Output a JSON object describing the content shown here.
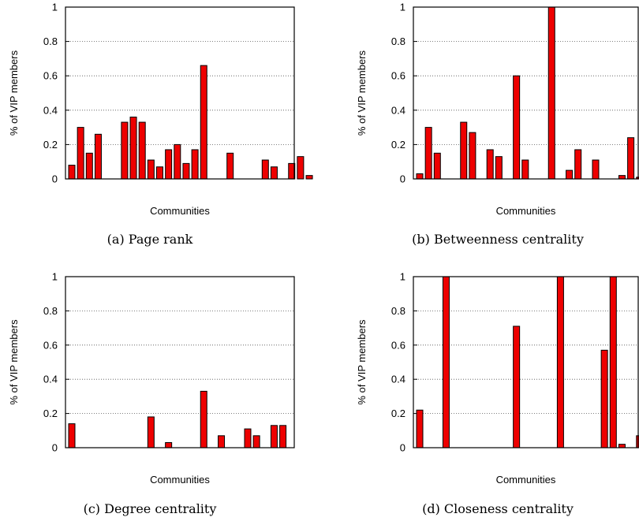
{
  "chart_data": [
    {
      "type": "bar",
      "caption": "(a) Page rank",
      "xlabel": "Communities",
      "ylabel": "% of VIP members",
      "ylim": [
        0,
        1
      ],
      "yticks": [
        "0",
        "0.2",
        "0.4",
        "0.6",
        "0.8",
        "1"
      ],
      "grid": true,
      "values": [
        0.08,
        0.3,
        0.15,
        0.26,
        0,
        0,
        0.33,
        0.36,
        0.33,
        0.11,
        0.07,
        0.17,
        0.2,
        0.09,
        0.17,
        0.66,
        0,
        0,
        0.15,
        0,
        0,
        0,
        0.11,
        0.07,
        0,
        0.09,
        0.13,
        0.02
      ]
    },
    {
      "type": "bar",
      "caption": "(b) Betweenness centrality",
      "xlabel": "Communities",
      "ylabel": "% of VIP members",
      "ylim": [
        0,
        1
      ],
      "yticks": [
        "0",
        "0.2",
        "0.4",
        "0.6",
        "0.8",
        "1"
      ],
      "grid": true,
      "values": [
        0.03,
        0.3,
        0.15,
        0,
        0,
        0.33,
        0.27,
        0,
        0.17,
        0.13,
        0,
        0.6,
        0.11,
        0,
        0,
        1.0,
        0,
        0.05,
        0.17,
        0,
        0.11,
        0,
        0,
        0.02,
        0.24,
        0.01
      ]
    },
    {
      "type": "bar",
      "caption": "(c) Degree centrality",
      "xlabel": "Communities",
      "ylabel": "% of VIP members",
      "ylim": [
        0,
        1
      ],
      "yticks": [
        "0",
        "0.2",
        "0.4",
        "0.6",
        "0.8",
        "1"
      ],
      "grid": true,
      "values": [
        0.14,
        0,
        0,
        0,
        0,
        0,
        0,
        0,
        0,
        0.18,
        0,
        0.03,
        0,
        0,
        0,
        0.33,
        0,
        0.07,
        0,
        0,
        0.11,
        0.07,
        0,
        0.13,
        0.13
      ]
    },
    {
      "type": "bar",
      "caption": "(d) Closeness centrality",
      "xlabel": "Communities",
      "ylabel": "% of VIP members",
      "ylim": [
        0,
        1
      ],
      "yticks": [
        "0",
        "0.2",
        "0.4",
        "0.6",
        "0.8",
        "1"
      ],
      "grid": true,
      "values": [
        0.22,
        0,
        0,
        1.0,
        0,
        0,
        0,
        0,
        0,
        0,
        0,
        0.71,
        0,
        0,
        0,
        0,
        1.0,
        0,
        0,
        0,
        0,
        0.57,
        1.0,
        0.02,
        0,
        0.07
      ]
    }
  ],
  "colors": {
    "bar": "#ee0000",
    "bar_edge": "#000000"
  }
}
